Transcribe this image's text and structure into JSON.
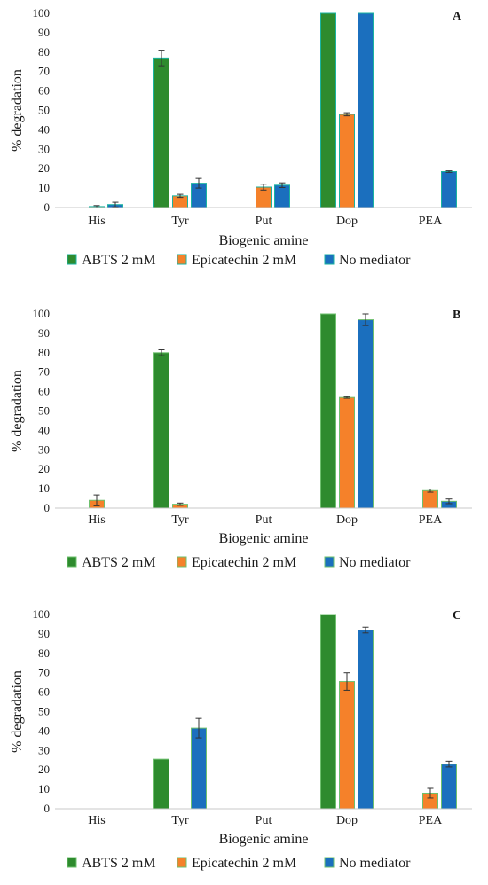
{
  "colors": {
    "abts": "#2e8b2e",
    "epicatechin": "#f5812a",
    "no_mediator": "#1b6fbe",
    "bar_outline_a": "#1ab3a0",
    "bar_outline_default": "#6ec06e",
    "axis": "#c8c8c8",
    "error_bar": "#333333"
  },
  "chart_data": [
    {
      "panel": "A",
      "type": "bar",
      "categories": [
        "His",
        "Tyr",
        "Put",
        "Dop",
        "PEA"
      ],
      "ylabel": "% degradation",
      "xlabel": "Biogenic amine",
      "ylim": [
        0,
        100
      ],
      "yticks": [
        0,
        10,
        20,
        30,
        40,
        50,
        60,
        70,
        80,
        90,
        100
      ],
      "legend_position": "bottom",
      "series": [
        {
          "name": "ABTS 2 mM",
          "color_key": "abts",
          "values": [
            0,
            77,
            0,
            100,
            0
          ],
          "errors": [
            0,
            4,
            0,
            0,
            0
          ]
        },
        {
          "name": "Epicatechin 2 mM",
          "color_key": "epicatechin",
          "values": [
            0.5,
            6,
            10.5,
            48,
            0
          ],
          "errors": [
            0.5,
            0.8,
            1.5,
            0.8,
            0
          ]
        },
        {
          "name": "No mediator",
          "color_key": "no_mediator",
          "values": [
            1.5,
            12.5,
            11.5,
            100,
            18.5
          ],
          "errors": [
            1.2,
            2.5,
            1.2,
            0,
            0.4
          ]
        }
      ]
    },
    {
      "panel": "B",
      "type": "bar",
      "categories": [
        "His",
        "Tyr",
        "Put",
        "Dop",
        "PEA"
      ],
      "ylabel": "% degradation",
      "xlabel": "Biogenic amine",
      "ylim": [
        0,
        100
      ],
      "yticks": [
        0,
        10,
        20,
        30,
        40,
        50,
        60,
        70,
        80,
        90,
        100
      ],
      "legend_position": "bottom",
      "series": [
        {
          "name": "ABTS 2 mM",
          "color_key": "abts",
          "values": [
            0,
            80,
            0,
            100,
            0
          ],
          "errors": [
            0,
            1.5,
            0,
            0,
            0
          ]
        },
        {
          "name": "Epicatechin 2 mM",
          "color_key": "epicatechin",
          "values": [
            4,
            2,
            0,
            57,
            9
          ],
          "errors": [
            2.8,
            0.6,
            0,
            0.4,
            0.8
          ]
        },
        {
          "name": "No mediator",
          "color_key": "no_mediator",
          "values": [
            0,
            0,
            0,
            97,
            3.5
          ],
          "errors": [
            0,
            0,
            0,
            3,
            1.2
          ]
        }
      ]
    },
    {
      "panel": "C",
      "type": "bar",
      "categories": [
        "His",
        "Tyr",
        "Put",
        "Dop",
        "PEA"
      ],
      "ylabel": "% degradation",
      "xlabel": "Biogenic amine",
      "ylim": [
        0,
        100
      ],
      "yticks": [
        0,
        10,
        20,
        30,
        40,
        50,
        60,
        70,
        80,
        90,
        100
      ],
      "legend_position": "bottom",
      "series": [
        {
          "name": "ABTS 2 mM",
          "color_key": "abts",
          "values": [
            0,
            25.5,
            0,
            100,
            0
          ],
          "errors": [
            0,
            0,
            0,
            0,
            0
          ]
        },
        {
          "name": "Epicatechin 2 mM",
          "color_key": "epicatechin",
          "values": [
            0,
            0,
            0,
            65.5,
            8
          ],
          "errors": [
            0,
            0,
            0,
            4.5,
            2.5
          ]
        },
        {
          "name": "No mediator",
          "color_key": "no_mediator",
          "values": [
            0,
            41.5,
            0,
            92,
            23
          ],
          "errors": [
            0,
            5,
            0,
            1.5,
            1.5
          ]
        }
      ]
    }
  ]
}
